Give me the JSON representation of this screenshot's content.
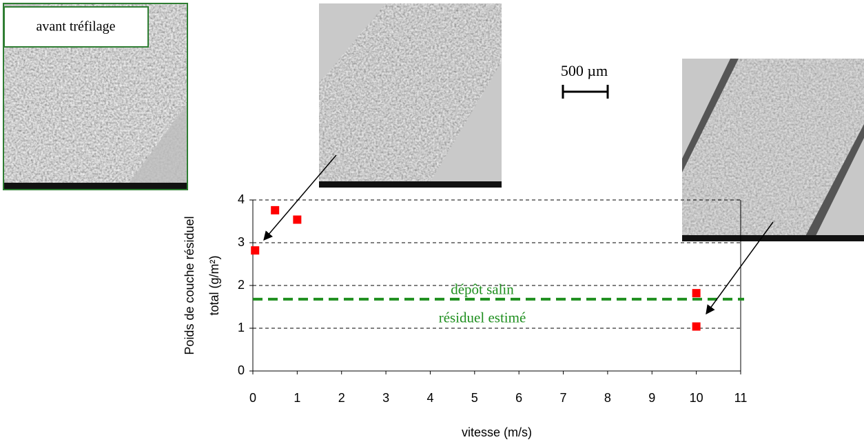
{
  "chart_data": {
    "type": "scatter",
    "x": [
      0.05,
      0.5,
      1,
      10,
      10
    ],
    "values": [
      2.82,
      3.76,
      3.54,
      1.82,
      1.04
    ],
    "color": "#ff0000",
    "xlim": [
      0,
      11
    ],
    "xticks": [
      0,
      1,
      2,
      3,
      4,
      5,
      6,
      7,
      8,
      9,
      10,
      11
    ],
    "ylim": [
      0,
      4
    ],
    "yticks": [
      0,
      1,
      2,
      3,
      4
    ],
    "grid": true,
    "xlabel": "vitesse (m/s)",
    "ylabel": [
      "Poids de couche résiduel",
      "total (g/m²)"
    ],
    "reference": {
      "value": 1.68,
      "color": "#1f8f1f",
      "labels": [
        "dépôt salin",
        "résiduel estimé"
      ]
    }
  },
  "image_label": "avant tréfilage",
  "scale_bar": "500 µm"
}
